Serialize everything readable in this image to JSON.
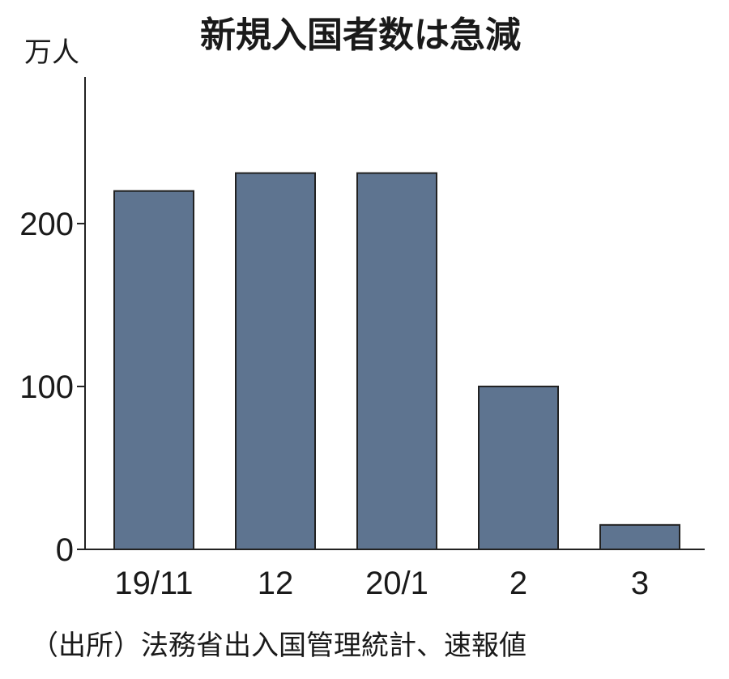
{
  "chart_data": {
    "type": "bar",
    "title": "新規入国者数は急減",
    "ylabel": "万人",
    "xlabel": "",
    "categories": [
      "19/11",
      "12",
      "20/1",
      "2",
      "3"
    ],
    "values": [
      220,
      231,
      231,
      100,
      15
    ],
    "ylim": [
      0,
      290
    ],
    "yticks": [
      0,
      100,
      200
    ],
    "grid": false,
    "bar_color": "#5e7490",
    "source": "（出所）法務省出入国管理統計、速報値"
  }
}
